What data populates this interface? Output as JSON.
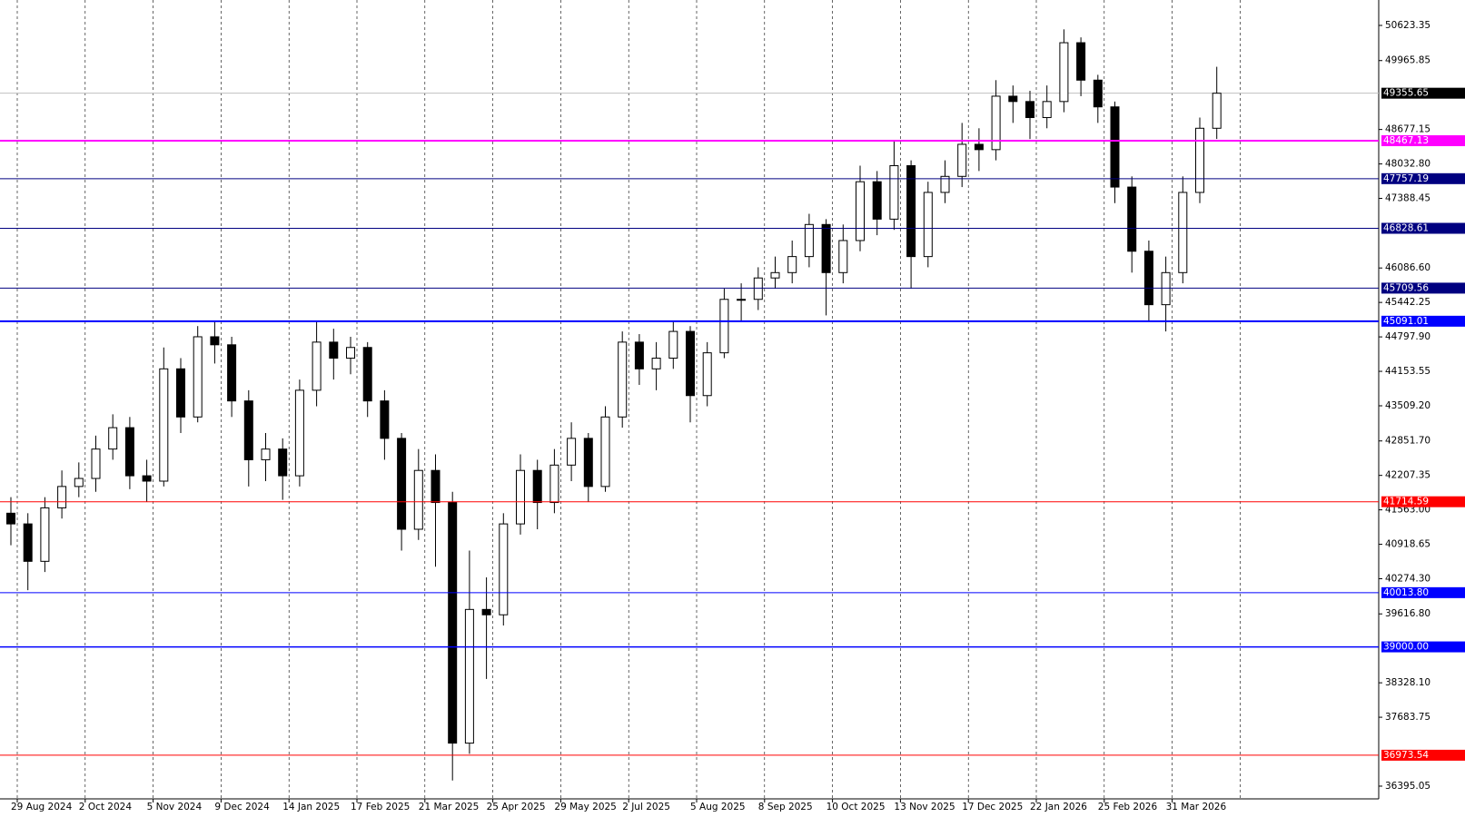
{
  "chart_data": {
    "type": "candlestick",
    "ylim": [
      36157,
      51099
    ],
    "yticks": [
      {
        "value": 50623.35,
        "label": "50623.35"
      },
      {
        "value": 49965.85,
        "label": "49965.85"
      },
      {
        "value": 48677.15,
        "label": "48677.15"
      },
      {
        "value": 48032.8,
        "label": "48032.80"
      },
      {
        "value": 47388.45,
        "label": "47388.45"
      },
      {
        "value": 46086.6,
        "label": "46086.60"
      },
      {
        "value": 45442.25,
        "label": "45442.25"
      },
      {
        "value": 44797.9,
        "label": "44797.90"
      },
      {
        "value": 44153.55,
        "label": "44153.55"
      },
      {
        "value": 43509.2,
        "label": "43509.20"
      },
      {
        "value": 42851.7,
        "label": "42851.70"
      },
      {
        "value": 42207.35,
        "label": "42207.35"
      },
      {
        "value": 41563.0,
        "label": "41563.00"
      },
      {
        "value": 40918.65,
        "label": "40918.65"
      },
      {
        "value": 40274.3,
        "label": "40274.30"
      },
      {
        "value": 39616.8,
        "label": "39616.80"
      },
      {
        "value": 38328.1,
        "label": "38328.10"
      },
      {
        "value": 37683.75,
        "label": "37683.75"
      },
      {
        "value": 36395.05,
        "label": "36395.05"
      }
    ],
    "x_labels": [
      "29 Aug 2024",
      "2 Oct 2024",
      "5 Nov 2024",
      "9 Dec 2024",
      "14 Jan 2025",
      "17 Feb 2025",
      "21 Mar 2025",
      "25 Apr 2025",
      "29 May 2025",
      "2 Jul 2025",
      "5 Aug 2025",
      "8 Sep 2025",
      "10 Oct 2025",
      "13 Nov 2025",
      "17 Dec 2025",
      "22 Jan 2026",
      "25 Feb 2026",
      "31 Mar 2026"
    ],
    "open": [
      41500,
      41300,
      40600,
      41600,
      42000,
      42150,
      42700,
      43100,
      42200,
      42100,
      44200,
      43300,
      44800,
      44650,
      43600,
      42500,
      42700,
      42200,
      43800,
      44700,
      44400,
      44600,
      43600,
      42900,
      41200,
      42300,
      41700,
      37200,
      39700,
      39600,
      41300,
      42300,
      41700,
      42400,
      42900,
      42000,
      43300,
      44700,
      44200,
      44400,
      44900,
      43700,
      44500,
      45500,
      45500,
      45900,
      46000,
      46300,
      46900,
      46000,
      46600,
      47700,
      47000,
      48000,
      46300,
      47500,
      47800,
      48400,
      48300,
      49300,
      49200,
      48900,
      49200,
      50300,
      49600,
      49100,
      47600,
      46400,
      45400,
      46000,
      47500,
      48700
    ],
    "high": [
      41800,
      41500,
      41800,
      42300,
      42450,
      42950,
      43350,
      43300,
      42500,
      44600,
      44400,
      45000,
      45091,
      44800,
      43800,
      43000,
      42900,
      44000,
      45091,
      44950,
      44800,
      44700,
      43800,
      43000,
      42700,
      42600,
      41900,
      40800,
      40300,
      41500,
      42600,
      42500,
      42700,
      43200,
      43000,
      43500,
      44900,
      44850,
      44700,
      45091,
      45000,
      44700,
      45700,
      45800,
      46100,
      46300,
      46600,
      47100,
      47000,
      46900,
      48000,
      47900,
      48467,
      48100,
      47700,
      48100,
      48800,
      48700,
      49600,
      49500,
      49400,
      49500,
      50550,
      50400,
      49700,
      49200,
      47800,
      46600,
      46300,
      47800,
      48900,
      49850
    ],
    "low": [
      40900,
      40060,
      40400,
      41400,
      41800,
      41900,
      42500,
      41950,
      41714,
      42000,
      43000,
      43200,
      44300,
      43300,
      42000,
      42100,
      41750,
      42000,
      43500,
      44000,
      44100,
      43300,
      42500,
      40800,
      41000,
      40500,
      36500,
      37000,
      38400,
      39400,
      41100,
      41200,
      41500,
      42100,
      41714,
      41900,
      43100,
      43900,
      43800,
      44200,
      43200,
      43500,
      44400,
      45100,
      45300,
      45700,
      45800,
      46100,
      45200,
      45800,
      46400,
      46700,
      46800,
      45700,
      46100,
      47300,
      47600,
      47900,
      48100,
      48800,
      48500,
      48700,
      49000,
      49300,
      48800,
      47300,
      46000,
      45100,
      44900,
      45800,
      47300,
      48500
    ],
    "close": [
      41300,
      40600,
      41600,
      42000,
      42150,
      42700,
      43100,
      42200,
      42100,
      44200,
      43300,
      44800,
      44650,
      43600,
      42500,
      42700,
      42200,
      43800,
      44700,
      44400,
      44600,
      43600,
      42900,
      41200,
      42300,
      41700,
      37200,
      39700,
      39600,
      41300,
      42300,
      41700,
      42400,
      42900,
      42000,
      43300,
      44700,
      44200,
      44400,
      44900,
      43700,
      44500,
      45500,
      45500,
      45900,
      46000,
      46300,
      46900,
      46000,
      46600,
      47700,
      47000,
      48000,
      46300,
      47500,
      47800,
      48400,
      48300,
      49300,
      49200,
      48900,
      49200,
      50300,
      49600,
      49100,
      47600,
      46400,
      45400,
      46000,
      47500,
      48700,
      49355.65
    ],
    "last_price": {
      "value": 49355.65,
      "label": "49355.65",
      "color": "#000000"
    },
    "levels": [
      {
        "value": 48467.13,
        "label": "48467.13",
        "color": "#ff00ff",
        "width": 2
      },
      {
        "value": 47757.19,
        "label": "47757.19",
        "color": "#000080",
        "width": 1
      },
      {
        "value": 46828.61,
        "label": "46828.61",
        "color": "#000080",
        "width": 1
      },
      {
        "value": 45709.56,
        "label": "45709.56",
        "color": "#000080",
        "width": 1
      },
      {
        "value": 45091.01,
        "label": "45091.01",
        "color": "#0000ff",
        "width": 2
      },
      {
        "value": 41714.59,
        "label": "41714.59",
        "color": "#ff0000",
        "width": 1
      },
      {
        "value": 40013.8,
        "label": "40013.80",
        "color": "#0000ff",
        "width": 1
      },
      {
        "value": 39000.0,
        "label": "39000.00",
        "color": "#0000ff",
        "width": 1.5
      },
      {
        "value": 36973.54,
        "label": "36973.54",
        "color": "#ff0000",
        "width": 1
      }
    ],
    "grid": true
  }
}
